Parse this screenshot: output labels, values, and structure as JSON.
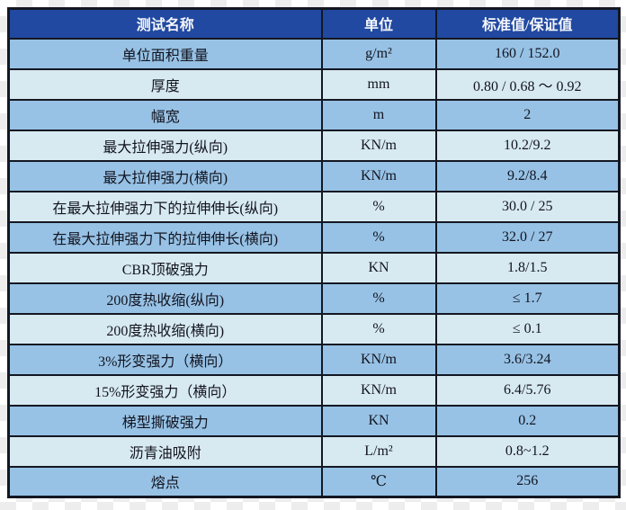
{
  "table": {
    "headers": {
      "name": "测试名称",
      "unit": "单位",
      "value": "标准值/保证值"
    },
    "rows": [
      {
        "name": "单位面积重量",
        "unit": "g/m²",
        "value": "160 / 152.0"
      },
      {
        "name": "厚度",
        "unit": "mm",
        "value": "0.80 / 0.68 ～ 0.92"
      },
      {
        "name": "幅宽",
        "unit": "m",
        "value": "2"
      },
      {
        "name": "最大拉伸强力(纵向)",
        "unit": "KN/m",
        "value": "10.2/9.2"
      },
      {
        "name": "最大拉伸强力(横向)",
        "unit": "KN/m",
        "value": "9.2/8.4"
      },
      {
        "name": "在最大拉伸强力下的拉伸伸长(纵向)",
        "unit": "%",
        "value": "30.0 / 25"
      },
      {
        "name": "在最大拉伸强力下的拉伸伸长(横向)",
        "unit": "%",
        "value": "32.0 / 27"
      },
      {
        "name": "CBR顶破强力",
        "unit": "KN",
        "value": "1.8/1.5"
      },
      {
        "name": "200度热收缩(纵向)",
        "unit": "%",
        "value": "≤ 1.7"
      },
      {
        "name": "200度热收缩(横向)",
        "unit": "%",
        "value": "≤ 0.1"
      },
      {
        "name": "3%形变强力（横向）",
        "unit": "KN/m",
        "value": "3.6/3.24"
      },
      {
        "name": "15%形变强力（横向）",
        "unit": "KN/m",
        "value": "6.4/5.76"
      },
      {
        "name": "梯型撕破强力",
        "unit": "KN",
        "value": "0.2"
      },
      {
        "name": "沥青油吸附",
        "unit": "L/m²",
        "value": "0.8~1.2"
      },
      {
        "name": "熔点",
        "unit": "℃",
        "value": "256"
      }
    ],
    "colors": {
      "header_bg": "#2149a1",
      "header_text": "#f4f6fa",
      "row_odd_bg": "#97c2e5",
      "row_even_bg": "#d8eaf1",
      "border": "#131722",
      "cell_text": "#121420"
    }
  }
}
